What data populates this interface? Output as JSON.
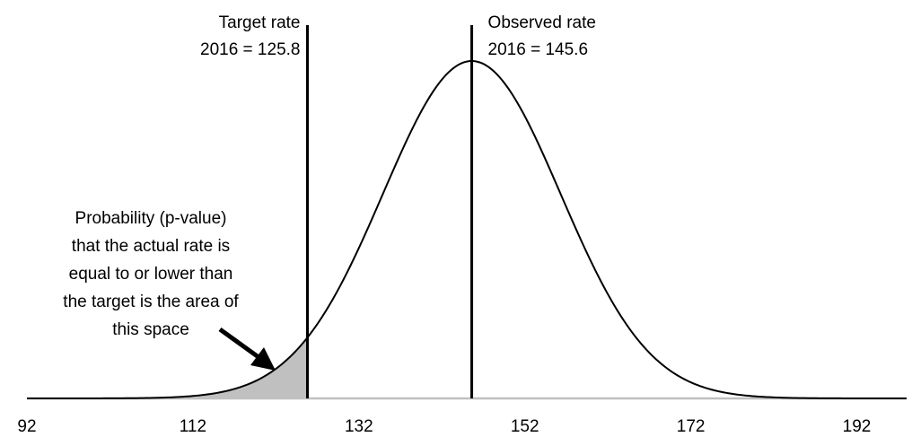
{
  "chart_data": {
    "type": "area",
    "distribution": "normal",
    "mean": 145.6,
    "sd": 10.7,
    "xlim": [
      92,
      198
    ],
    "x_ticks": [
      "92",
      "112",
      "132",
      "152",
      "172",
      "192"
    ],
    "x_tick_values": [
      92,
      112,
      132,
      152,
      172,
      192
    ],
    "shaded_region": {
      "from": 92,
      "to": 125.8,
      "color": "#c0c0c0"
    },
    "vertical_lines": [
      {
        "x": 125.8,
        "label_lines": [
          "Target rate",
          "2016 = 125.8"
        ]
      },
      {
        "x": 145.6,
        "label_lines": [
          "Observed rate",
          "2016 = 145.6"
        ]
      }
    ],
    "annotation": {
      "lines": [
        "Probability (p-value)",
        "that the actual rate is",
        "equal to or lower than",
        "the target is the area of",
        "this space"
      ],
      "arrow": true
    },
    "title": "",
    "xlabel": "",
    "ylabel": "",
    "grid": false,
    "colors": {
      "curve": "#000000",
      "axis": "#c0c0c0",
      "lines": "#000000",
      "shade": "#c0c0c0"
    }
  }
}
